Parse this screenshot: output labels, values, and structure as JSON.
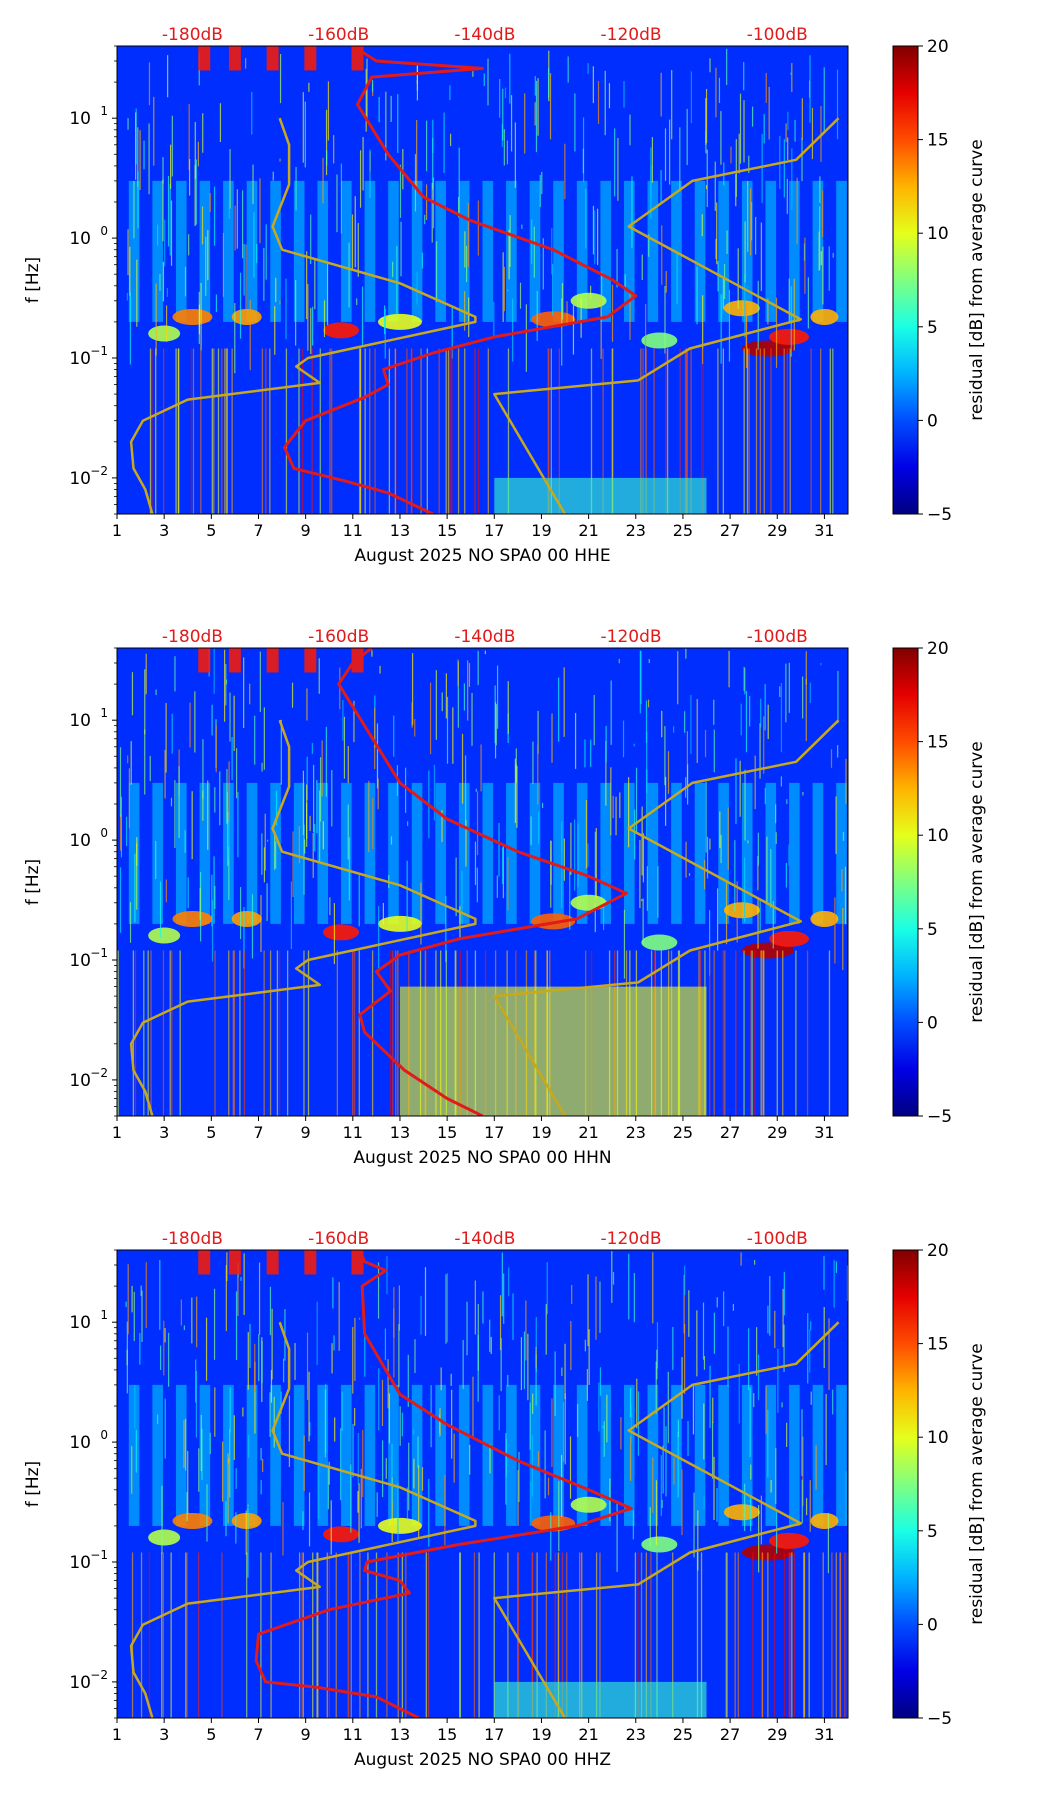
{
  "colors": {
    "noise_model": "#c8a81c",
    "median_curve": "#e11a1a",
    "top_labels": "#e11a1a",
    "axis": "#000000"
  },
  "chart_data": [
    {
      "type": "heatmap",
      "xlabel": "August 2025 NO SPA0 00 HHE",
      "ylabel": "f [Hz]",
      "x_ticks": [
        1,
        3,
        5,
        7,
        9,
        11,
        13,
        15,
        17,
        19,
        21,
        23,
        25,
        27,
        29,
        31
      ],
      "xlim": [
        1,
        32
      ],
      "ylim_hz": [
        0.005,
        40
      ],
      "y_ticks": [
        {
          "value": 0.01,
          "base": "10",
          "exp": "−2"
        },
        {
          "value": 0.1,
          "base": "10",
          "exp": "−1"
        },
        {
          "value": 1,
          "base": "10",
          "exp": "0"
        },
        {
          "value": 10,
          "base": "10",
          "exp": "1"
        }
      ],
      "top_labels": [
        {
          "label": "-180dB",
          "x": 4.2
        },
        {
          "label": "-160dB",
          "x": 10.4
        },
        {
          "label": "-140dB",
          "x": 16.6
        },
        {
          "label": "-120dB",
          "x": 22.8
        },
        {
          "label": "-100dB",
          "x": 29.0
        }
      ],
      "colorbar": {
        "label": "residual [dB] from average curve",
        "range": [
          -5,
          20
        ],
        "ticks": [
          -5,
          0,
          5,
          10,
          15,
          20
        ]
      },
      "series": [
        {
          "name": "new-low-noise-model",
          "points": [
            [
              2.5,
              0.005
            ],
            [
              2.2,
              0.008
            ],
            [
              1.7,
              0.012
            ],
            [
              1.6,
              0.02
            ],
            [
              2.1,
              0.03
            ],
            [
              4.0,
              0.045
            ],
            [
              9.6,
              0.062
            ],
            [
              8.6,
              0.085
            ],
            [
              9.1,
              0.1
            ],
            [
              16.2,
              0.2
            ],
            [
              16.2,
              0.22
            ],
            [
              13.0,
              0.42
            ],
            [
              8.0,
              0.8
            ],
            [
              7.6,
              1.25
            ],
            [
              8.3,
              2.8
            ],
            [
              8.3,
              6.0
            ],
            [
              7.9,
              10
            ]
          ]
        },
        {
          "name": "new-high-noise-model",
          "points": [
            [
              20.0,
              0.005
            ],
            [
              17.0,
              0.05
            ],
            [
              23.1,
              0.065
            ],
            [
              25.3,
              0.12
            ],
            [
              30.0,
              0.21
            ],
            [
              22.7,
              1.25
            ],
            [
              25.4,
              3.0
            ],
            [
              29.8,
              4.5
            ],
            [
              31.6,
              10
            ]
          ]
        },
        {
          "name": "median-curve",
          "points": [
            [
              14.4,
              0.005
            ],
            [
              12.5,
              0.0075
            ],
            [
              10.6,
              0.0095
            ],
            [
              8.5,
              0.012
            ],
            [
              8.1,
              0.018
            ],
            [
              9.0,
              0.03
            ],
            [
              11.5,
              0.047
            ],
            [
              12.5,
              0.06
            ],
            [
              12.3,
              0.08
            ],
            [
              14.4,
              0.11
            ],
            [
              17.0,
              0.15
            ],
            [
              21.8,
              0.22
            ],
            [
              23.0,
              0.33
            ],
            [
              22.0,
              0.45
            ],
            [
              19.5,
              0.8
            ],
            [
              16.0,
              1.4
            ],
            [
              14.0,
              2.2
            ],
            [
              12.5,
              5.0
            ],
            [
              11.2,
              13.0
            ],
            [
              11.8,
              22
            ],
            [
              16.5,
              26
            ],
            [
              12.0,
              30
            ],
            [
              11.0,
              40
            ]
          ]
        }
      ],
      "broadband_band": {
        "x_from": 17,
        "x_to": 26,
        "f_from": 0.005,
        "f_to": 0.01,
        "intensity": 0.2
      }
    },
    {
      "type": "heatmap",
      "xlabel": "August 2025 NO SPA0 00 HHN",
      "ylabel": "f [Hz]",
      "x_ticks": [
        1,
        3,
        5,
        7,
        9,
        11,
        13,
        15,
        17,
        19,
        21,
        23,
        25,
        27,
        29,
        31
      ],
      "xlim": [
        1,
        32
      ],
      "ylim_hz": [
        0.005,
        40
      ],
      "y_ticks": [
        {
          "value": 0.01,
          "base": "10",
          "exp": "−2"
        },
        {
          "value": 0.1,
          "base": "10",
          "exp": "−1"
        },
        {
          "value": 1,
          "base": "10",
          "exp": "0"
        },
        {
          "value": 10,
          "base": "10",
          "exp": "1"
        }
      ],
      "top_labels": [
        {
          "label": "-180dB",
          "x": 4.2
        },
        {
          "label": "-160dB",
          "x": 10.4
        },
        {
          "label": "-140dB",
          "x": 16.6
        },
        {
          "label": "-120dB",
          "x": 22.8
        },
        {
          "label": "-100dB",
          "x": 29.0
        }
      ],
      "colorbar": {
        "label": "residual [dB] from average curve",
        "range": [
          -5,
          20
        ],
        "ticks": [
          -5,
          0,
          5,
          10,
          15,
          20
        ]
      },
      "series": [
        {
          "name": "new-low-noise-model",
          "points": [
            [
              2.5,
              0.005
            ],
            [
              2.2,
              0.008
            ],
            [
              1.7,
              0.012
            ],
            [
              1.6,
              0.02
            ],
            [
              2.1,
              0.03
            ],
            [
              4.0,
              0.045
            ],
            [
              9.6,
              0.062
            ],
            [
              8.6,
              0.085
            ],
            [
              9.1,
              0.1
            ],
            [
              16.2,
              0.2
            ],
            [
              16.2,
              0.22
            ],
            [
              13.0,
              0.42
            ],
            [
              8.0,
              0.8
            ],
            [
              7.6,
              1.25
            ],
            [
              8.3,
              2.8
            ],
            [
              8.3,
              6.0
            ],
            [
              7.9,
              10
            ]
          ]
        },
        {
          "name": "new-high-noise-model",
          "points": [
            [
              20.0,
              0.005
            ],
            [
              17.0,
              0.05
            ],
            [
              23.1,
              0.065
            ],
            [
              25.3,
              0.12
            ],
            [
              30.0,
              0.21
            ],
            [
              22.7,
              1.25
            ],
            [
              25.4,
              3.0
            ],
            [
              29.8,
              4.5
            ],
            [
              31.6,
              10
            ]
          ]
        },
        {
          "name": "median-curve",
          "points": [
            [
              16.5,
              0.005
            ],
            [
              15.0,
              0.007
            ],
            [
              13.2,
              0.012
            ],
            [
              11.5,
              0.025
            ],
            [
              11.3,
              0.035
            ],
            [
              12.6,
              0.055
            ],
            [
              12.0,
              0.08
            ],
            [
              13.0,
              0.11
            ],
            [
              15.5,
              0.15
            ],
            [
              20.5,
              0.22
            ],
            [
              22.6,
              0.36
            ],
            [
              21.0,
              0.5
            ],
            [
              18.0,
              0.8
            ],
            [
              15.0,
              1.5
            ],
            [
              13.0,
              3.0
            ],
            [
              11.5,
              9.0
            ],
            [
              10.4,
              20
            ],
            [
              11.0,
              30
            ],
            [
              11.8,
              40
            ]
          ]
        }
      ],
      "broadband_band": {
        "x_from": 13,
        "x_to": 26,
        "f_from": 0.005,
        "f_to": 0.06,
        "intensity": 0.65
      }
    },
    {
      "type": "heatmap",
      "xlabel": "August 2025 NO SPA0 00 HHZ",
      "ylabel": "f [Hz]",
      "x_ticks": [
        1,
        3,
        5,
        7,
        9,
        11,
        13,
        15,
        17,
        19,
        21,
        23,
        25,
        27,
        29,
        31
      ],
      "xlim": [
        1,
        32
      ],
      "ylim_hz": [
        0.005,
        40
      ],
      "y_ticks": [
        {
          "value": 0.01,
          "base": "10",
          "exp": "−2"
        },
        {
          "value": 0.1,
          "base": "10",
          "exp": "−1"
        },
        {
          "value": 1,
          "base": "10",
          "exp": "0"
        },
        {
          "value": 10,
          "base": "10",
          "exp": "1"
        }
      ],
      "top_labels": [
        {
          "label": "-180dB",
          "x": 4.2
        },
        {
          "label": "-160dB",
          "x": 10.4
        },
        {
          "label": "-140dB",
          "x": 16.6
        },
        {
          "label": "-120dB",
          "x": 22.8
        },
        {
          "label": "-100dB",
          "x": 29.0
        }
      ],
      "colorbar": {
        "label": "residual [dB] from average curve",
        "range": [
          -5,
          20
        ],
        "ticks": [
          -5,
          0,
          5,
          10,
          15,
          20
        ]
      },
      "series": [
        {
          "name": "new-low-noise-model",
          "points": [
            [
              2.5,
              0.005
            ],
            [
              2.2,
              0.008
            ],
            [
              1.7,
              0.012
            ],
            [
              1.6,
              0.02
            ],
            [
              2.1,
              0.03
            ],
            [
              4.0,
              0.045
            ],
            [
              9.6,
              0.062
            ],
            [
              8.6,
              0.085
            ],
            [
              9.1,
              0.1
            ],
            [
              16.2,
              0.2
            ],
            [
              16.2,
              0.22
            ],
            [
              13.0,
              0.42
            ],
            [
              8.0,
              0.8
            ],
            [
              7.6,
              1.25
            ],
            [
              8.3,
              2.8
            ],
            [
              8.3,
              6.0
            ],
            [
              7.9,
              10
            ]
          ]
        },
        {
          "name": "new-high-noise-model",
          "points": [
            [
              20.0,
              0.005
            ],
            [
              17.0,
              0.05
            ],
            [
              23.1,
              0.065
            ],
            [
              25.3,
              0.12
            ],
            [
              30.0,
              0.21
            ],
            [
              22.7,
              1.25
            ],
            [
              25.4,
              3.0
            ],
            [
              29.8,
              4.5
            ],
            [
              31.6,
              10
            ]
          ]
        },
        {
          "name": "median-curve",
          "points": [
            [
              13.8,
              0.005
            ],
            [
              12.0,
              0.0075
            ],
            [
              9.5,
              0.009
            ],
            [
              7.3,
              0.01
            ],
            [
              6.9,
              0.015
            ],
            [
              7.0,
              0.025
            ],
            [
              10.0,
              0.04
            ],
            [
              13.4,
              0.055
            ],
            [
              13.0,
              0.07
            ],
            [
              11.5,
              0.085
            ],
            [
              11.6,
              0.1
            ],
            [
              15.5,
              0.14
            ],
            [
              20.5,
              0.2
            ],
            [
              22.8,
              0.28
            ],
            [
              21.0,
              0.4
            ],
            [
              18.0,
              0.7
            ],
            [
              15.0,
              1.4
            ],
            [
              13.0,
              2.5
            ],
            [
              11.5,
              8.0
            ],
            [
              11.4,
              20
            ],
            [
              12.4,
              27
            ],
            [
              11.5,
              32
            ],
            [
              11.3,
              40
            ]
          ]
        }
      ],
      "broadband_band": {
        "x_from": 17,
        "x_to": 26,
        "f_from": 0.005,
        "f_to": 0.01,
        "intensity": 0.2
      }
    }
  ]
}
